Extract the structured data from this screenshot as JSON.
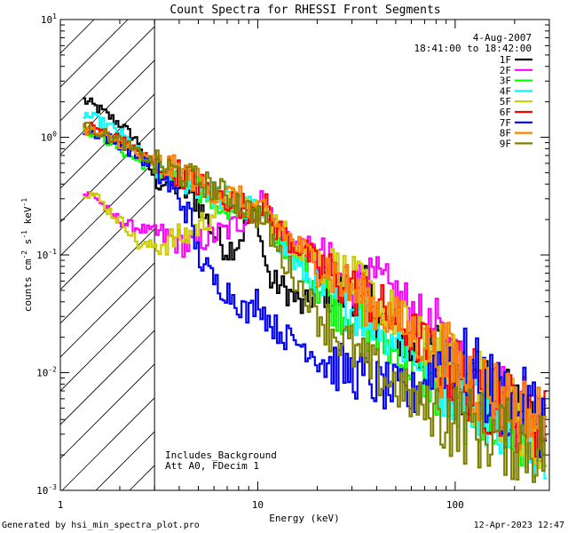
{
  "chart_data": {
    "type": "line",
    "title": "Count Spectra for RHESSI Front Segments",
    "xlabel": "Energy (keV)",
    "ylabel": {
      "base": "counts cm",
      "exp1": "-2",
      "mid": " s",
      "exp2": "-1",
      "end": " keV",
      "exp3": "-1"
    },
    "xscale": "log",
    "yscale": "log",
    "xlim": [
      1,
      300
    ],
    "ylim": [
      0.001,
      10
    ],
    "xticks": [
      {
        "value": 1,
        "label": "1"
      },
      {
        "value": 10,
        "label": "10"
      },
      {
        "value": 100,
        "label": "100"
      }
    ],
    "yticks": [
      {
        "value": 0.001,
        "base": "10",
        "exp": "-3"
      },
      {
        "value": 0.01,
        "base": "10",
        "exp": "-2"
      },
      {
        "value": 0.1,
        "base": "10",
        "exp": "-1"
      },
      {
        "value": 1,
        "base": "10",
        "exp": "0"
      },
      {
        "value": 10,
        "base": "10",
        "exp": "1"
      }
    ],
    "hatched_region": {
      "from": 1,
      "to": 3
    },
    "date": "4-Aug-2007",
    "time_range": "18:41:00 to 18:42:00",
    "annotations": [
      "Includes_Background",
      "Att A0, FDecim 1"
    ],
    "series": [
      {
        "name": "1F",
        "color": "#000000",
        "points": [
          [
            1.3,
            2.1
          ],
          [
            1.6,
            1.7
          ],
          [
            2.0,
            1.3
          ],
          [
            2.5,
            0.9
          ],
          [
            3.0,
            0.45
          ],
          [
            4,
            0.38
          ],
          [
            5,
            0.28
          ],
          [
            6,
            0.15
          ],
          [
            7,
            0.11
          ],
          [
            8,
            0.13
          ],
          [
            9,
            0.2
          ],
          [
            10,
            0.24
          ],
          [
            10.5,
            0.12
          ],
          [
            11.5,
            0.06
          ],
          [
            13,
            0.055
          ],
          [
            15,
            0.045
          ],
          [
            17,
            0.035
          ],
          [
            20,
            0.05
          ],
          [
            22,
            0.055
          ],
          [
            25,
            0.045
          ],
          [
            30,
            0.05
          ],
          [
            35,
            0.05
          ],
          [
            40,
            0.03
          ],
          [
            50,
            0.022
          ],
          [
            60,
            0.015
          ],
          [
            70,
            0.013
          ],
          [
            80,
            0.015
          ],
          [
            90,
            0.012
          ],
          [
            100,
            0.009
          ],
          [
            120,
            0.008
          ],
          [
            150,
            0.006
          ],
          [
            180,
            0.005
          ],
          [
            220,
            0.0045
          ],
          [
            260,
            0.004
          ],
          [
            290,
            0.0035
          ]
        ]
      },
      {
        "name": "2F",
        "color": "#ff00ff",
        "points": [
          [
            1.3,
            0.33
          ],
          [
            1.5,
            0.32
          ],
          [
            1.8,
            0.22
          ],
          [
            2.2,
            0.18
          ],
          [
            2.8,
            0.16
          ],
          [
            3.5,
            0.14
          ],
          [
            4.5,
            0.12
          ],
          [
            5.5,
            0.14
          ],
          [
            7,
            0.16
          ],
          [
            9,
            0.22
          ],
          [
            10.5,
            0.28
          ],
          [
            12,
            0.2
          ],
          [
            15,
            0.13
          ],
          [
            20,
            0.1
          ],
          [
            25,
            0.07
          ],
          [
            30,
            0.06
          ],
          [
            35,
            0.055
          ],
          [
            40,
            0.06
          ],
          [
            50,
            0.045
          ],
          [
            60,
            0.035
          ],
          [
            70,
            0.025
          ],
          [
            80,
            0.02
          ],
          [
            90,
            0.015
          ],
          [
            100,
            0.011
          ],
          [
            120,
            0.009
          ],
          [
            150,
            0.007
          ],
          [
            180,
            0.0055
          ],
          [
            220,
            0.005
          ],
          [
            260,
            0.004
          ],
          [
            290,
            0.0035
          ]
        ]
      },
      {
        "name": "3F",
        "color": "#00ff00",
        "points": [
          [
            1.3,
            1.2
          ],
          [
            1.6,
            1.05
          ],
          [
            2.0,
            0.8
          ],
          [
            2.5,
            0.62
          ],
          [
            3.0,
            0.55
          ],
          [
            4,
            0.42
          ],
          [
            5,
            0.35
          ],
          [
            6,
            0.3
          ],
          [
            7,
            0.27
          ],
          [
            8,
            0.25
          ],
          [
            9,
            0.23
          ],
          [
            10,
            0.22
          ],
          [
            11,
            0.2
          ],
          [
            13,
            0.14
          ],
          [
            15,
            0.1
          ],
          [
            17,
            0.08
          ],
          [
            20,
            0.06
          ],
          [
            23,
            0.045
          ],
          [
            26,
            0.035
          ],
          [
            30,
            0.032
          ],
          [
            35,
            0.025
          ],
          [
            40,
            0.02
          ],
          [
            50,
            0.015
          ],
          [
            60,
            0.012
          ],
          [
            70,
            0.009
          ],
          [
            80,
            0.008
          ],
          [
            100,
            0.006
          ],
          [
            120,
            0.005
          ],
          [
            150,
            0.004
          ],
          [
            180,
            0.0035
          ],
          [
            220,
            0.003
          ],
          [
            260,
            0.0028
          ],
          [
            290,
            0.0025
          ]
        ]
      },
      {
        "name": "4F",
        "color": "#00ffff",
        "points": [
          [
            1.3,
            1.6
          ],
          [
            1.6,
            1.35
          ],
          [
            2.0,
            1.1
          ],
          [
            2.5,
            0.75
          ],
          [
            3.0,
            0.56
          ],
          [
            4,
            0.45
          ],
          [
            5,
            0.38
          ],
          [
            6,
            0.32
          ],
          [
            7,
            0.3
          ],
          [
            8,
            0.27
          ],
          [
            9,
            0.25
          ],
          [
            10,
            0.23
          ],
          [
            11,
            0.2
          ],
          [
            13,
            0.13
          ],
          [
            15,
            0.09
          ],
          [
            17,
            0.07
          ],
          [
            20,
            0.055
          ],
          [
            23,
            0.045
          ],
          [
            26,
            0.04
          ],
          [
            30,
            0.035
          ],
          [
            35,
            0.03
          ],
          [
            40,
            0.028
          ],
          [
            50,
            0.02
          ],
          [
            60,
            0.015
          ],
          [
            70,
            0.012
          ],
          [
            80,
            0.01
          ],
          [
            100,
            0.008
          ],
          [
            120,
            0.006
          ],
          [
            150,
            0.005
          ],
          [
            180,
            0.004
          ],
          [
            220,
            0.0035
          ],
          [
            260,
            0.003
          ],
          [
            290,
            0.0028
          ]
        ]
      },
      {
        "name": "5F",
        "color": "#cccc00",
        "points": [
          [
            1.3,
            0.35
          ],
          [
            1.5,
            0.32
          ],
          [
            1.8,
            0.23
          ],
          [
            2.2,
            0.17
          ],
          [
            2.5,
            0.12
          ],
          [
            3.0,
            0.12
          ],
          [
            3.5,
            0.13
          ],
          [
            4.5,
            0.15
          ],
          [
            5.5,
            0.2
          ],
          [
            7,
            0.3
          ],
          [
            9,
            0.26
          ],
          [
            11,
            0.23
          ],
          [
            13,
            0.17
          ],
          [
            15,
            0.13
          ],
          [
            17,
            0.11
          ],
          [
            20,
            0.1
          ],
          [
            23,
            0.08
          ],
          [
            26,
            0.07
          ],
          [
            30,
            0.06
          ],
          [
            35,
            0.05
          ],
          [
            40,
            0.04
          ],
          [
            50,
            0.03
          ],
          [
            60,
            0.022
          ],
          [
            70,
            0.017
          ],
          [
            80,
            0.013
          ],
          [
            100,
            0.01
          ],
          [
            120,
            0.008
          ],
          [
            150,
            0.006
          ],
          [
            180,
            0.005
          ],
          [
            220,
            0.004
          ],
          [
            260,
            0.0035
          ],
          [
            290,
            0.003
          ]
        ]
      },
      {
        "name": "6F",
        "color": "#ff0000",
        "points": [
          [
            1.3,
            1.3
          ],
          [
            1.6,
            1.15
          ],
          [
            2.0,
            0.95
          ],
          [
            2.5,
            0.75
          ],
          [
            3.0,
            0.6
          ],
          [
            4,
            0.5
          ],
          [
            5,
            0.4
          ],
          [
            6,
            0.34
          ],
          [
            7,
            0.3
          ],
          [
            8,
            0.27
          ],
          [
            9,
            0.25
          ],
          [
            10,
            0.25
          ],
          [
            10.8,
            0.28
          ],
          [
            12,
            0.18
          ],
          [
            14,
            0.14
          ],
          [
            17,
            0.11
          ],
          [
            20,
            0.085
          ],
          [
            23,
            0.07
          ],
          [
            26,
            0.06
          ],
          [
            30,
            0.05
          ],
          [
            35,
            0.045
          ],
          [
            40,
            0.038
          ],
          [
            50,
            0.028
          ],
          [
            60,
            0.022
          ],
          [
            70,
            0.017
          ],
          [
            80,
            0.014
          ],
          [
            90,
            0.012
          ],
          [
            100,
            0.01
          ],
          [
            120,
            0.008
          ],
          [
            150,
            0.006
          ],
          [
            180,
            0.005
          ],
          [
            220,
            0.0045
          ],
          [
            260,
            0.004
          ],
          [
            290,
            0.0035
          ]
        ]
      },
      {
        "name": "7F",
        "color": "#0000ff",
        "points": [
          [
            1.3,
            1.15
          ],
          [
            1.6,
            1.05
          ],
          [
            2.0,
            0.88
          ],
          [
            2.5,
            0.68
          ],
          [
            3.0,
            0.55
          ],
          [
            3.5,
            0.4
          ],
          [
            4,
            0.3
          ],
          [
            4.5,
            0.22
          ],
          [
            5,
            0.1
          ],
          [
            6,
            0.06
          ],
          [
            7,
            0.05
          ],
          [
            8,
            0.04
          ],
          [
            9,
            0.03
          ],
          [
            10,
            0.045
          ],
          [
            11,
            0.03
          ],
          [
            12,
            0.025
          ],
          [
            14,
            0.02
          ],
          [
            16,
            0.018
          ],
          [
            18,
            0.016
          ],
          [
            20,
            0.014
          ],
          [
            23,
            0.012
          ],
          [
            26,
            0.011
          ],
          [
            30,
            0.01
          ],
          [
            35,
            0.009
          ],
          [
            40,
            0.008
          ],
          [
            50,
            0.007
          ],
          [
            60,
            0.006
          ],
          [
            70,
            0.009
          ],
          [
            80,
            0.012
          ],
          [
            90,
            0.015
          ],
          [
            100,
            0.014
          ],
          [
            120,
            0.01
          ],
          [
            150,
            0.007
          ],
          [
            180,
            0.006
          ],
          [
            220,
            0.005
          ],
          [
            260,
            0.0045
          ],
          [
            290,
            0.004
          ]
        ]
      },
      {
        "name": "8F",
        "color": "#ff8000",
        "points": [
          [
            1.3,
            1.2
          ],
          [
            1.6,
            1.05
          ],
          [
            2.0,
            0.9
          ],
          [
            2.5,
            0.7
          ],
          [
            3.0,
            0.6
          ],
          [
            4,
            0.52
          ],
          [
            5,
            0.42
          ],
          [
            6,
            0.36
          ],
          [
            7,
            0.32
          ],
          [
            8,
            0.3
          ],
          [
            9,
            0.26
          ],
          [
            10,
            0.24
          ],
          [
            11,
            0.22
          ],
          [
            13,
            0.17
          ],
          [
            15,
            0.13
          ],
          [
            17,
            0.11
          ],
          [
            20,
            0.09
          ],
          [
            23,
            0.075
          ],
          [
            26,
            0.06
          ],
          [
            30,
            0.05
          ],
          [
            35,
            0.042
          ],
          [
            40,
            0.035
          ],
          [
            50,
            0.028
          ],
          [
            60,
            0.022
          ],
          [
            70,
            0.018
          ],
          [
            80,
            0.015
          ],
          [
            100,
            0.011
          ],
          [
            120,
            0.009
          ],
          [
            150,
            0.007
          ],
          [
            180,
            0.0055
          ],
          [
            220,
            0.0045
          ],
          [
            260,
            0.004
          ],
          [
            290,
            0.0035
          ]
        ]
      },
      {
        "name": "9F",
        "color": "#808000",
        "points": [
          [
            1.3,
            1.25
          ],
          [
            1.6,
            1.1
          ],
          [
            2.0,
            0.93
          ],
          [
            2.5,
            0.73
          ],
          [
            3.0,
            0.6
          ],
          [
            4,
            0.5
          ],
          [
            5,
            0.43
          ],
          [
            6,
            0.37
          ],
          [
            7,
            0.32
          ],
          [
            8,
            0.28
          ],
          [
            9,
            0.24
          ],
          [
            10,
            0.22
          ],
          [
            11,
            0.18
          ],
          [
            13,
            0.1
          ],
          [
            15,
            0.07
          ],
          [
            17,
            0.05
          ],
          [
            20,
            0.035
          ],
          [
            23,
            0.025
          ],
          [
            26,
            0.02
          ],
          [
            30,
            0.016
          ],
          [
            35,
            0.012
          ],
          [
            40,
            0.01
          ],
          [
            50,
            0.008
          ],
          [
            60,
            0.006
          ],
          [
            70,
            0.005
          ],
          [
            80,
            0.0045
          ],
          [
            100,
            0.004
          ],
          [
            120,
            0.0035
          ],
          [
            150,
            0.003
          ],
          [
            180,
            0.0028
          ],
          [
            220,
            0.0025
          ],
          [
            260,
            0.0023
          ],
          [
            290,
            0.0022
          ]
        ]
      }
    ]
  },
  "footer": {
    "generated_by": "Generated by hsi_min_spectra_plot.pro",
    "date_time": "12-Apr-2023 12:47"
  }
}
